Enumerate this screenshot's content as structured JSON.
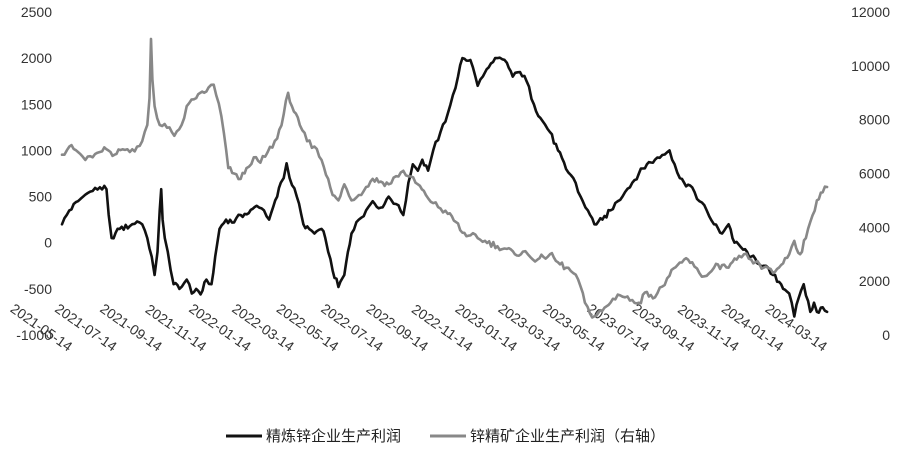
{
  "chart_data": {
    "type": "line",
    "title": "",
    "xlabel": "",
    "ylabel": "",
    "y2label": "",
    "x_ticks": [
      "2021-05-14",
      "2021-07-14",
      "2021-09-14",
      "2021-11-14",
      "2022-01-14",
      "2022-03-14",
      "2022-05-14",
      "2022-07-14",
      "2022-09-14",
      "2022-11-14",
      "2023-01-14",
      "2023-03-14",
      "2023-05-14",
      "2023-07-14",
      "2023-09-14",
      "2023-11-14",
      "2024-01-14",
      "2024-03-14"
    ],
    "x_range": [
      "2021-05-14",
      "2024-04-01"
    ],
    "y_left": {
      "min": -1000,
      "max": 2500,
      "step": 500,
      "labels": [
        "-1000",
        "-500",
        "0",
        "500",
        "1000",
        "1500",
        "2000",
        "2500"
      ]
    },
    "y_right": {
      "min": 0,
      "max": 12000,
      "step": 2000,
      "labels": [
        "0",
        "2000",
        "4000",
        "6000",
        "8000",
        "10000",
        "12000"
      ]
    },
    "legend_position": "bottom",
    "grid": false,
    "series": [
      {
        "name": "精炼锌企业生产利润",
        "axis": "left",
        "color": "#111111",
        "points": [
          [
            "2021-05-14",
            200
          ],
          [
            "2021-05-24",
            350
          ],
          [
            "2021-06-05",
            450
          ],
          [
            "2021-06-15",
            520
          ],
          [
            "2021-06-25",
            560
          ],
          [
            "2021-07-05",
            600
          ],
          [
            "2021-07-14",
            580
          ],
          [
            "2021-07-17",
            300
          ],
          [
            "2021-07-21",
            50
          ],
          [
            "2021-08-01",
            150
          ],
          [
            "2021-08-15",
            180
          ],
          [
            "2021-08-25",
            230
          ],
          [
            "2021-09-01",
            200
          ],
          [
            "2021-09-08",
            50
          ],
          [
            "2021-09-14",
            -150
          ],
          [
            "2021-09-18",
            -350
          ],
          [
            "2021-09-22",
            -100
          ],
          [
            "2021-09-25",
            350
          ],
          [
            "2021-09-27",
            580
          ],
          [
            "2021-09-29",
            250
          ],
          [
            "2021-10-02",
            50
          ],
          [
            "2021-10-06",
            -100
          ],
          [
            "2021-10-10",
            -300
          ],
          [
            "2021-10-14",
            -450
          ],
          [
            "2021-10-22",
            -500
          ],
          [
            "2021-11-01",
            -400
          ],
          [
            "2021-11-08",
            -550
          ],
          [
            "2021-11-14",
            -500
          ],
          [
            "2021-11-20",
            -560
          ],
          [
            "2021-11-28",
            -400
          ],
          [
            "2021-12-05",
            -450
          ],
          [
            "2021-12-10",
            -150
          ],
          [
            "2021-12-16",
            150
          ],
          [
            "2021-12-25",
            250
          ],
          [
            "2022-01-05",
            220
          ],
          [
            "2022-01-14",
            300
          ],
          [
            "2022-01-25",
            320
          ],
          [
            "2022-02-05",
            400
          ],
          [
            "2022-02-15",
            350
          ],
          [
            "2022-02-22",
            250
          ],
          [
            "2022-03-05",
            500
          ],
          [
            "2022-03-10",
            650
          ],
          [
            "2022-03-14",
            700
          ],
          [
            "2022-03-18",
            860
          ],
          [
            "2022-03-22",
            700
          ],
          [
            "2022-04-01",
            500
          ],
          [
            "2022-04-10",
            200
          ],
          [
            "2022-04-18",
            150
          ],
          [
            "2022-04-25",
            100
          ],
          [
            "2022-05-05",
            150
          ],
          [
            "2022-05-10",
            50
          ],
          [
            "2022-05-14",
            -100
          ],
          [
            "2022-05-20",
            -300
          ],
          [
            "2022-05-28",
            -480
          ],
          [
            "2022-06-05",
            -350
          ],
          [
            "2022-06-10",
            -100
          ],
          [
            "2022-06-15",
            100
          ],
          [
            "2022-06-25",
            250
          ],
          [
            "2022-07-05",
            350
          ],
          [
            "2022-07-14",
            450
          ],
          [
            "2022-07-25",
            380
          ],
          [
            "2022-08-05",
            500
          ],
          [
            "2022-08-15",
            420
          ],
          [
            "2022-08-25",
            300
          ],
          [
            "2022-09-01",
            650
          ],
          [
            "2022-09-07",
            850
          ],
          [
            "2022-09-14",
            780
          ],
          [
            "2022-09-20",
            900
          ],
          [
            "2022-09-28",
            780
          ],
          [
            "2022-10-05",
            1000
          ],
          [
            "2022-10-15",
            1200
          ],
          [
            "2022-10-25",
            1400
          ],
          [
            "2022-11-01",
            1600
          ],
          [
            "2022-11-08",
            1800
          ],
          [
            "2022-11-14",
            2000
          ],
          [
            "2022-11-25",
            1980
          ],
          [
            "2022-12-05",
            1700
          ],
          [
            "2022-12-12",
            1800
          ],
          [
            "2022-12-20",
            1900
          ],
          [
            "2023-01-01",
            2000
          ],
          [
            "2023-01-14",
            1950
          ],
          [
            "2023-01-22",
            1800
          ],
          [
            "2023-02-01",
            1850
          ],
          [
            "2023-02-10",
            1750
          ],
          [
            "2023-02-20",
            1500
          ],
          [
            "2023-03-01",
            1350
          ],
          [
            "2023-03-14",
            1200
          ],
          [
            "2023-03-25",
            1000
          ],
          [
            "2023-04-05",
            800
          ],
          [
            "2023-04-15",
            700
          ],
          [
            "2023-04-25",
            500
          ],
          [
            "2023-05-05",
            350
          ],
          [
            "2023-05-14",
            200
          ],
          [
            "2023-05-25",
            250
          ],
          [
            "2023-06-05",
            350
          ],
          [
            "2023-06-15",
            450
          ],
          [
            "2023-06-25",
            550
          ],
          [
            "2023-07-05",
            650
          ],
          [
            "2023-07-14",
            750
          ],
          [
            "2023-07-25",
            850
          ],
          [
            "2023-08-05",
            900
          ],
          [
            "2023-08-15",
            950
          ],
          [
            "2023-08-25",
            1000
          ],
          [
            "2023-09-01",
            850
          ],
          [
            "2023-09-08",
            700
          ],
          [
            "2023-09-14",
            650
          ],
          [
            "2023-09-25",
            600
          ],
          [
            "2023-10-05",
            450
          ],
          [
            "2023-10-15",
            350
          ],
          [
            "2023-10-25",
            200
          ],
          [
            "2023-11-05",
            100
          ],
          [
            "2023-11-14",
            200
          ],
          [
            "2023-11-22",
            0
          ],
          [
            "2023-12-01",
            -50
          ],
          [
            "2023-12-15",
            -150
          ],
          [
            "2024-01-01",
            -250
          ],
          [
            "2024-01-14",
            -350
          ],
          [
            "2024-01-25",
            -450
          ],
          [
            "2024-02-05",
            -550
          ],
          [
            "2024-02-12",
            -800
          ],
          [
            "2024-02-18",
            -600
          ],
          [
            "2024-02-25",
            -450
          ],
          [
            "2024-03-05",
            -750
          ],
          [
            "2024-03-10",
            -650
          ],
          [
            "2024-03-14",
            -750
          ],
          [
            "2024-03-22",
            -700
          ],
          [
            "2024-03-28",
            -750
          ]
        ]
      },
      {
        "name": "锌精矿企业生产利润（右轴）",
        "axis": "right",
        "color": "#888888",
        "points": [
          [
            "2021-05-14",
            6700
          ],
          [
            "2021-05-24",
            7000
          ],
          [
            "2021-06-05",
            6800
          ],
          [
            "2021-06-15",
            6500
          ],
          [
            "2021-06-25",
            6600
          ],
          [
            "2021-07-05",
            6800
          ],
          [
            "2021-07-14",
            6900
          ],
          [
            "2021-07-25",
            6700
          ],
          [
            "2021-08-05",
            6900
          ],
          [
            "2021-08-15",
            6800
          ],
          [
            "2021-08-25",
            7000
          ],
          [
            "2021-09-01",
            7200
          ],
          [
            "2021-09-08",
            7800
          ],
          [
            "2021-09-11",
            8800
          ],
          [
            "2021-09-13",
            11000
          ],
          [
            "2021-09-15",
            9500
          ],
          [
            "2021-09-18",
            8500
          ],
          [
            "2021-09-25",
            7800
          ],
          [
            "2021-10-05",
            7700
          ],
          [
            "2021-10-15",
            7400
          ],
          [
            "2021-10-25",
            7800
          ],
          [
            "2021-11-01",
            8500
          ],
          [
            "2021-11-14",
            8800
          ],
          [
            "2021-11-25",
            9000
          ],
          [
            "2021-12-01",
            9200
          ],
          [
            "2021-12-08",
            9300
          ],
          [
            "2021-12-15",
            8600
          ],
          [
            "2021-12-22",
            7500
          ],
          [
            "2021-12-28",
            6200
          ],
          [
            "2022-01-05",
            6000
          ],
          [
            "2022-01-14",
            5800
          ],
          [
            "2022-01-22",
            6200
          ],
          [
            "2022-02-01",
            6600
          ],
          [
            "2022-02-10",
            6400
          ],
          [
            "2022-02-20",
            6800
          ],
          [
            "2022-03-05",
            7300
          ],
          [
            "2022-03-14",
            8200
          ],
          [
            "2022-03-20",
            9000
          ],
          [
            "2022-03-28",
            8300
          ],
          [
            "2022-04-05",
            7800
          ],
          [
            "2022-04-15",
            7200
          ],
          [
            "2022-04-25",
            7000
          ],
          [
            "2022-05-05",
            6500
          ],
          [
            "2022-05-14",
            5800
          ],
          [
            "2022-05-20",
            5200
          ],
          [
            "2022-05-28",
            5000
          ],
          [
            "2022-06-05",
            5600
          ],
          [
            "2022-06-15",
            5000
          ],
          [
            "2022-06-25",
            5200
          ],
          [
            "2022-07-05",
            5500
          ],
          [
            "2022-07-14",
            5800
          ],
          [
            "2022-07-25",
            5700
          ],
          [
            "2022-08-05",
            5600
          ],
          [
            "2022-08-15",
            5900
          ],
          [
            "2022-08-25",
            6100
          ],
          [
            "2022-09-01",
            5900
          ],
          [
            "2022-09-14",
            5600
          ],
          [
            "2022-09-25",
            5200
          ],
          [
            "2022-10-05",
            4900
          ],
          [
            "2022-10-15",
            4700
          ],
          [
            "2022-10-25",
            4500
          ],
          [
            "2022-11-05",
            4200
          ],
          [
            "2022-11-14",
            3800
          ],
          [
            "2022-11-25",
            3700
          ],
          [
            "2022-12-05",
            3600
          ],
          [
            "2022-12-15",
            3500
          ],
          [
            "2023-01-01",
            3300
          ],
          [
            "2023-01-14",
            3200
          ],
          [
            "2023-01-25",
            3000
          ],
          [
            "2023-02-05",
            3100
          ],
          [
            "2023-02-15",
            2900
          ],
          [
            "2023-02-25",
            2800
          ],
          [
            "2023-03-05",
            2900
          ],
          [
            "2023-03-14",
            3000
          ],
          [
            "2023-03-25",
            2700
          ],
          [
            "2023-04-05",
            2500
          ],
          [
            "2023-04-15",
            2300
          ],
          [
            "2023-04-25",
            1800
          ],
          [
            "2023-05-01",
            1200
          ],
          [
            "2023-05-08",
            800
          ],
          [
            "2023-05-14",
            700
          ],
          [
            "2023-05-25",
            900
          ],
          [
            "2023-06-05",
            1200
          ],
          [
            "2023-06-15",
            1500
          ],
          [
            "2023-06-25",
            1400
          ],
          [
            "2023-07-05",
            1300
          ],
          [
            "2023-07-14",
            1200
          ],
          [
            "2023-07-25",
            1600
          ],
          [
            "2023-08-05",
            1400
          ],
          [
            "2023-08-15",
            1800
          ],
          [
            "2023-08-25",
            2200
          ],
          [
            "2023-09-05",
            2600
          ],
          [
            "2023-09-14",
            2800
          ],
          [
            "2023-09-25",
            2700
          ],
          [
            "2023-10-05",
            2300
          ],
          [
            "2023-10-15",
            2200
          ],
          [
            "2023-10-25",
            2500
          ],
          [
            "2023-11-05",
            2600
          ],
          [
            "2023-11-14",
            2500
          ],
          [
            "2023-11-25",
            2800
          ],
          [
            "2023-12-05",
            3000
          ],
          [
            "2023-12-15",
            2800
          ],
          [
            "2024-01-01",
            2500
          ],
          [
            "2024-01-14",
            2300
          ],
          [
            "2024-01-25",
            2600
          ],
          [
            "2024-02-05",
            3000
          ],
          [
            "2024-02-12",
            3500
          ],
          [
            "2024-02-20",
            3000
          ],
          [
            "2024-02-28",
            3600
          ],
          [
            "2024-03-05",
            4200
          ],
          [
            "2024-03-14",
            5000
          ],
          [
            "2024-03-22",
            5300
          ],
          [
            "2024-03-28",
            5500
          ]
        ]
      }
    ]
  }
}
